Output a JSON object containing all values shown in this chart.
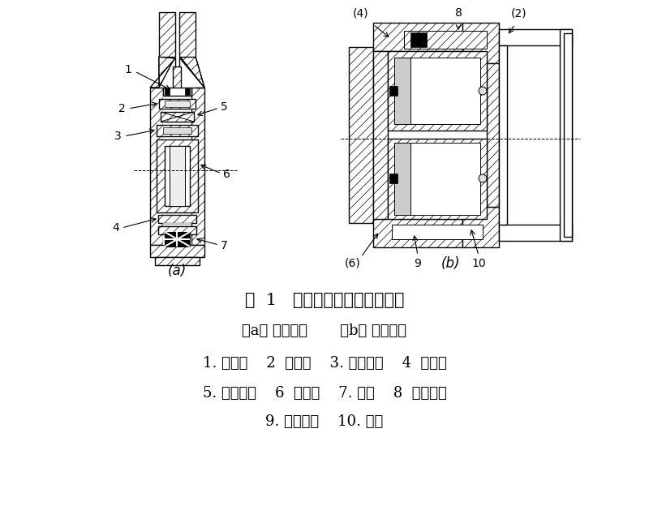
{
  "background_color": "#ffffff",
  "title_line1": "图  1   手动葫芦限载结构示意图",
  "title_line2": "（a） 手拉葫芦       （b） 手扮葫芦",
  "legend_line1": "1. 手链轮    2  连接盘    3. 调节螺母    4  摩擦片",
  "legend_line2": "5. 磹形弹簧    6  制动盘    7. 平键    8  换向棘轮",
  "legend_line3": "9. 调节螺钉    10. 手轮",
  "title_fontsize": 15,
  "subtitle_fontsize": 13,
  "legend_fontsize": 13,
  "label_fontsize": 10,
  "fig_width": 8.0,
  "fig_height": 6.24
}
